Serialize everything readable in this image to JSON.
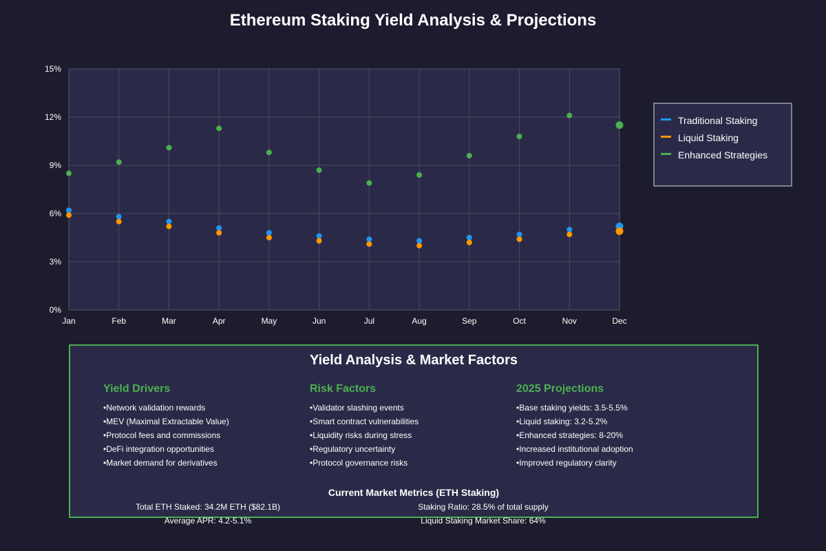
{
  "title": "Ethereum Staking Yield Analysis & Projections",
  "chart_data": {
    "type": "scatter",
    "categories": [
      "Jan",
      "Feb",
      "Mar",
      "Apr",
      "May",
      "Jun",
      "Jul",
      "Aug",
      "Sep",
      "Oct",
      "Nov",
      "Dec"
    ],
    "ylim": [
      0,
      15
    ],
    "yticks": [
      0,
      3,
      6,
      9,
      12,
      15
    ],
    "ytick_labels": [
      "0%",
      "3%",
      "6%",
      "9%",
      "12%",
      "15%"
    ],
    "grid": true,
    "legend_position": "right",
    "series": [
      {
        "name": "Traditional Staking",
        "color": "#2196f3",
        "values": [
          6.2,
          5.8,
          5.5,
          5.1,
          4.8,
          4.6,
          4.4,
          4.3,
          4.5,
          4.7,
          5.0,
          5.2
        ]
      },
      {
        "name": "Liquid Staking",
        "color": "#ff9800",
        "values": [
          5.9,
          5.5,
          5.2,
          4.8,
          4.5,
          4.3,
          4.1,
          4.0,
          4.2,
          4.4,
          4.7,
          4.9
        ]
      },
      {
        "name": "Enhanced Strategies",
        "color": "#4caf50",
        "values": [
          8.5,
          9.2,
          10.1,
          11.3,
          9.8,
          8.7,
          7.9,
          8.4,
          9.6,
          10.8,
          12.1,
          11.5
        ]
      }
    ]
  },
  "panel": {
    "title": "Yield Analysis & Market Factors",
    "columns": [
      {
        "title": "Yield Drivers",
        "items": [
          "Network validation rewards",
          "MEV (Maximal Extractable Value)",
          "Protocol fees and commissions",
          "DeFi integration opportunities",
          "Market demand for derivatives"
        ]
      },
      {
        "title": "Risk Factors",
        "items": [
          "Validator slashing events",
          "Smart contract vulnerabilities",
          "Liquidity risks during stress",
          "Regulatory uncertainty",
          "Protocol governance risks"
        ]
      },
      {
        "title": "2025 Projections",
        "items": [
          "Base staking yields: 3.5-5.5%",
          "Liquid staking: 3.2-5.2%",
          "Enhanced strategies: 8-20%",
          "Increased institutional adoption",
          "Improved regulatory clarity"
        ]
      }
    ],
    "metrics_title": "Current Market Metrics (ETH Staking)",
    "metrics": {
      "total_staked": "Total ETH Staked: 34.2M ETH ($82.1B)",
      "staking_ratio": "Staking Ratio: 28.5% of total supply",
      "average_apr": "Average APR: 4.2-5.1%",
      "liquid_share": "Liquid Staking Market Share: 64%"
    }
  }
}
